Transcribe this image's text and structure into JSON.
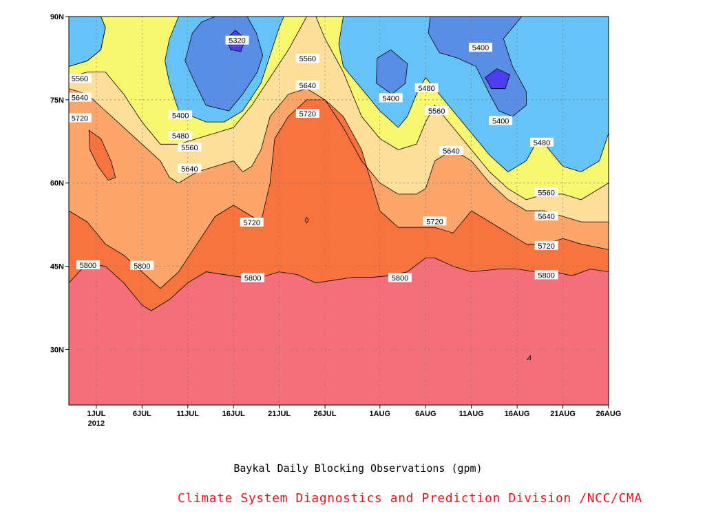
{
  "chart_data": {
    "type": "heatmap",
    "subtype": "filled contour (time–latitude)",
    "title": "Baykal Daily Blocking Observations (gpm)",
    "credit": "Climate System Diagnostics and Prediction Division /NCC/CMA",
    "credit_color": "#e0141e",
    "grid": true,
    "x": {
      "ticks": [
        "1JUL",
        "6JUL",
        "11JUL",
        "16JUL",
        "21JUL",
        "26JUL",
        "1AUG",
        "6AUG",
        "11AUG",
        "16AUG",
        "21AUG",
        "26AUG"
      ],
      "year_label": "2012",
      "tick_days": [
        1,
        6,
        11,
        16,
        21,
        26,
        32,
        37,
        42,
        47,
        52,
        57
      ],
      "range_days": [
        -2,
        57
      ]
    },
    "y": {
      "ticks": [
        "30N",
        "45N",
        "60N",
        "75N",
        "90N"
      ],
      "tick_values": [
        30,
        45,
        60,
        75,
        90
      ],
      "range": [
        20,
        90
      ]
    },
    "levels": [
      5320,
      5400,
      5480,
      5560,
      5640,
      5720,
      5800
    ],
    "colors": {
      "below_5320": "#4a3ef0",
      "5320_5400": "#5a8ee6",
      "5400_5480": "#66c3f7",
      "5480_5560": "#f8f870",
      "5560_5640": "#fddf9a",
      "5640_5720": "#fba56a",
      "5720_5800": "#f9733e",
      "above_5800": "#f56f7a"
    },
    "contour_labels": [
      {
        "text": "5320",
        "day": 16.4,
        "lat": 85.7
      },
      {
        "text": "5400",
        "day": 10.2,
        "lat": 72.2
      },
      {
        "text": "5400",
        "day": 33.2,
        "lat": 75.3
      },
      {
        "text": "5400",
        "day": 43.0,
        "lat": 84.4
      },
      {
        "text": "5400",
        "day": 45.2,
        "lat": 71.2
      },
      {
        "text": "5480",
        "day": 10.2,
        "lat": 68.5
      },
      {
        "text": "5480",
        "day": 37.1,
        "lat": 77.1
      },
      {
        "text": "5480",
        "day": 49.7,
        "lat": 67.3
      },
      {
        "text": "5560",
        "day": -0.8,
        "lat": 78.8
      },
      {
        "text": "5560",
        "day": 11.2,
        "lat": 66.4
      },
      {
        "text": "5560",
        "day": 24.1,
        "lat": 82.4
      },
      {
        "text": "5560",
        "day": 38.2,
        "lat": 73.0
      },
      {
        "text": "5560",
        "day": 50.2,
        "lat": 58.3
      },
      {
        "text": "5640",
        "day": -0.8,
        "lat": 75.4
      },
      {
        "text": "5640",
        "day": 11.2,
        "lat": 62.6
      },
      {
        "text": "5640",
        "day": 24.1,
        "lat": 77.6
      },
      {
        "text": "5640",
        "day": 39.8,
        "lat": 65.8
      },
      {
        "text": "5640",
        "day": 50.2,
        "lat": 54.0
      },
      {
        "text": "5720",
        "day": -0.8,
        "lat": 71.7
      },
      {
        "text": "5720",
        "day": 18.0,
        "lat": 52.9
      },
      {
        "text": "5720",
        "day": 24.1,
        "lat": 72.5
      },
      {
        "text": "5720",
        "day": 38.0,
        "lat": 53.1
      },
      {
        "text": "5720",
        "day": 50.2,
        "lat": 48.7
      },
      {
        "text": "5800",
        "day": 0.1,
        "lat": 45.2
      },
      {
        "text": "5800",
        "day": 6.0,
        "lat": 45.1
      },
      {
        "text": "5800",
        "day": 18.1,
        "lat": 42.9
      },
      {
        "text": "5800",
        "day": 34.2,
        "lat": 42.9
      },
      {
        "text": "5800",
        "day": 50.2,
        "lat": 43.4
      }
    ],
    "regions": [
      {
        "level": "5720_5800",
        "points": [
          [
            -2,
            55
          ],
          [
            0,
            53
          ],
          [
            2,
            49
          ],
          [
            4,
            47
          ],
          [
            6,
            44
          ],
          [
            8,
            41
          ],
          [
            10,
            44
          ],
          [
            12,
            49
          ],
          [
            14,
            54
          ],
          [
            16,
            56
          ],
          [
            18,
            54
          ],
          [
            19,
            53
          ],
          [
            20,
            60
          ],
          [
            20.5,
            68
          ],
          [
            22,
            72
          ],
          [
            24,
            75
          ],
          [
            26,
            75
          ],
          [
            28,
            72
          ],
          [
            30,
            66
          ],
          [
            32,
            55
          ],
          [
            34,
            52
          ],
          [
            36,
            52
          ],
          [
            38,
            52
          ],
          [
            40,
            51
          ],
          [
            42,
            55
          ],
          [
            44,
            53
          ],
          [
            46,
            51
          ],
          [
            48,
            49
          ],
          [
            50,
            49
          ],
          [
            52,
            50
          ],
          [
            54,
            49
          ],
          [
            57,
            48
          ],
          [
            57,
            20
          ],
          [
            -2,
            20
          ]
        ]
      },
      {
        "level": "above_5800",
        "points": [
          [
            -2,
            42
          ],
          [
            0,
            45.5
          ],
          [
            2,
            45
          ],
          [
            4,
            42
          ],
          [
            6,
            38
          ],
          [
            7,
            37
          ],
          [
            9,
            39
          ],
          [
            11,
            42
          ],
          [
            13,
            44
          ],
          [
            15,
            43.5
          ],
          [
            17,
            43
          ],
          [
            19,
            43
          ],
          [
            21,
            44
          ],
          [
            23,
            43.5
          ],
          [
            25,
            42
          ],
          [
            27,
            42.5
          ],
          [
            29,
            43
          ],
          [
            31,
            43
          ],
          [
            33,
            43.3
          ],
          [
            35,
            44
          ],
          [
            37,
            46.5
          ],
          [
            38,
            46.5
          ],
          [
            40,
            45
          ],
          [
            42,
            44
          ],
          [
            45,
            44.5
          ],
          [
            47,
            44.5
          ],
          [
            49,
            44
          ],
          [
            51,
            44
          ],
          [
            53,
            43.3
          ],
          [
            55,
            44.5
          ],
          [
            57,
            44
          ],
          [
            57,
            20
          ],
          [
            -2,
            20
          ]
        ]
      },
      {
        "level": "5720_5800",
        "points": [
          [
            0.2,
            69.5
          ],
          [
            1.5,
            68
          ],
          [
            2.6,
            64
          ],
          [
            3.1,
            61
          ],
          [
            2.3,
            60.5
          ],
          [
            1.2,
            63
          ],
          [
            0.3,
            66
          ]
        ]
      },
      {
        "level": "below_5320",
        "points": [
          [
            15.2,
            86
          ],
          [
            16.2,
            87.5
          ],
          [
            17.3,
            86
          ],
          [
            16.8,
            83.7
          ],
          [
            15.7,
            84
          ]
        ]
      },
      {
        "level": "below_5320",
        "points": [
          [
            43.5,
            79
          ],
          [
            44.8,
            80.6
          ],
          [
            46.2,
            79.5
          ],
          [
            45.7,
            77
          ],
          [
            44.2,
            77
          ]
        ]
      }
    ],
    "pockets_5400": [
      {
        "points": [
          [
            11.5,
            87
          ],
          [
            10.7,
            82
          ],
          [
            11.8,
            78
          ],
          [
            13,
            74
          ],
          [
            15.5,
            73
          ],
          [
            17,
            76
          ],
          [
            18.6,
            80
          ],
          [
            19.2,
            83
          ],
          [
            18.5,
            87
          ],
          [
            17.5,
            90
          ],
          [
            14,
            90
          ],
          [
            12.5,
            89
          ]
        ]
      },
      {
        "points": [
          [
            31.7,
            82.5
          ],
          [
            33.2,
            84
          ],
          [
            35,
            81.5
          ],
          [
            34.8,
            78
          ],
          [
            33.3,
            76
          ],
          [
            31.6,
            78
          ]
        ]
      },
      {
        "points": [
          [
            37.5,
            90
          ],
          [
            37.3,
            87
          ],
          [
            38.5,
            83.5
          ],
          [
            40.5,
            82.5
          ],
          [
            42.5,
            81
          ],
          [
            44,
            76
          ],
          [
            45,
            73
          ],
          [
            46.5,
            72
          ],
          [
            48,
            74
          ],
          [
            48,
            76.5
          ],
          [
            46.5,
            81
          ],
          [
            45.5,
            86
          ],
          [
            46.5,
            88
          ],
          [
            47.5,
            90
          ]
        ]
      }
    ],
    "yellow_bg_ranges": {
      "top_lat": 90,
      "5400_5480_boundary": [
        [
          -2,
          81
        ],
        [
          0,
          82
        ],
        [
          1.5,
          84
        ],
        [
          2,
          88
        ],
        [
          1.5,
          90
        ]
      ],
      "cyan_left_patch": [
        [
          -2,
          81
        ],
        [
          -2,
          90
        ],
        [
          1.5,
          90
        ],
        [
          2,
          88
        ],
        [
          1.5,
          84
        ],
        [
          0,
          82
        ]
      ]
    },
    "tiny_markers": [
      {
        "shape": "diamond",
        "day": 24.0,
        "lat": 53.3
      },
      {
        "shape": "triangle",
        "day": 48.3,
        "lat": 28.5
      }
    ]
  }
}
